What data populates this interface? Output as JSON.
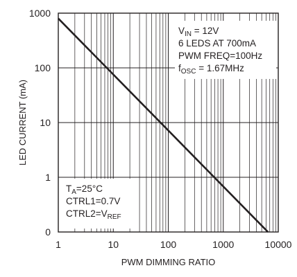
{
  "chart_data": {
    "type": "line",
    "xlabel": "PWM DIMMING RATIO",
    "ylabel": "LED CURRENT (mA)",
    "x_scale": "log",
    "y_scale": "log",
    "xlim": [
      1,
      10000
    ],
    "ylim_tick_labels": [
      "0",
      "1",
      "10",
      "100",
      "1000"
    ],
    "x_tick_labels": [
      "1",
      "10",
      "100",
      "1000",
      "10000"
    ],
    "grid": true,
    "series": [
      {
        "x": [
          1,
          6500
        ],
        "y": [
          800,
          0.1
        ]
      }
    ],
    "annotations": {
      "conditions": [
        {
          "main": "V",
          "sub": "IN",
          "rest": " = 12V"
        },
        {
          "main": "6 LEDS AT 700mA",
          "sub": "",
          "rest": ""
        },
        {
          "main": "PWM FREQ=100Hz",
          "sub": "",
          "rest": ""
        },
        {
          "main": "f",
          "sub": "OSC",
          "rest": " = 1.67MHz"
        }
      ],
      "test_conditions": [
        {
          "main": "T",
          "sub": "A",
          "rest": "=25°C"
        },
        {
          "main": "CTRL1=0.7V",
          "sub": "",
          "rest": ""
        },
        {
          "main": "CTRL2=V",
          "sub": "REF",
          "rest": ""
        }
      ]
    },
    "colors": {
      "line": "#231f20",
      "grid": "#231f20",
      "background": "#ffffff"
    }
  }
}
